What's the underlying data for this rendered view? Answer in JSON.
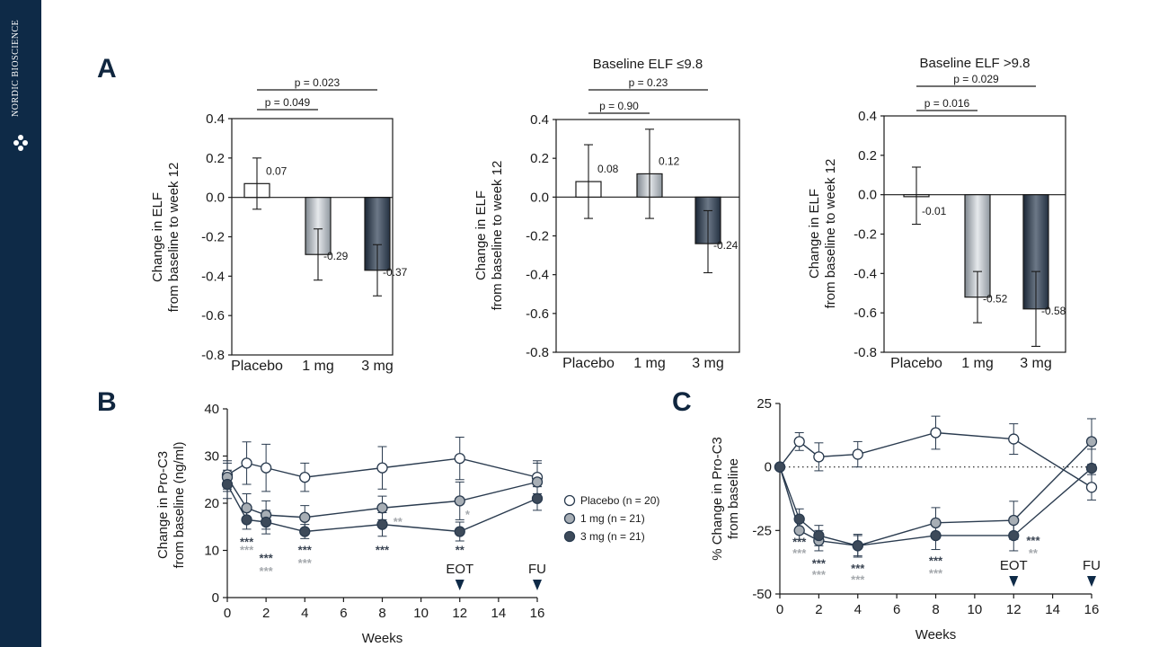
{
  "branding": {
    "name": "NORDIC BIOSCIENCE"
  },
  "colors": {
    "sidebar": "#0e2a47",
    "placebo": "#ffffff",
    "dose_1mg": "#a7aeb5",
    "dose_3mg": "#3d4a5a",
    "sig_1mg": "#a5a9ad",
    "sig_3mg": "#3a4452"
  },
  "gradients": {
    "g1": [
      "#7f878f",
      "#e6e9ec",
      "#8f979f"
    ],
    "g3": [
      "#1a2635",
      "#6c7887",
      "#243142"
    ]
  },
  "chart_data": [
    {
      "id": "A1",
      "panel_letter": "A",
      "type": "bar",
      "title": "",
      "ylabel": [
        "Change in ELF",
        "from baseline to week 12"
      ],
      "ylim": [
        -0.8,
        0.4
      ],
      "yticks": [
        "0.4",
        "0.2",
        "0.0",
        "-0.2",
        "-0.4",
        "-0.6",
        "-0.8"
      ],
      "categories": [
        "Placebo",
        "1 mg",
        "3 mg"
      ],
      "values": [
        0.07,
        -0.29,
        -0.37
      ],
      "value_labels": [
        "0.07",
        "-0.29",
        "-0.37"
      ],
      "err_low": [
        -0.06,
        -0.42,
        -0.5
      ],
      "err_high": [
        0.2,
        -0.16,
        -0.24
      ],
      "pvalues": [
        {
          "label": "p = 0.049",
          "from": 0,
          "to": 1
        },
        {
          "label": "p = 0.023",
          "from": 0,
          "to": 2
        }
      ]
    },
    {
      "id": "A2",
      "type": "bar",
      "title": "Baseline ELF ≤9.8",
      "ylabel": [
        "Change in ELF",
        "from baseline to week 12"
      ],
      "ylim": [
        -0.8,
        0.4
      ],
      "yticks": [
        "0.4",
        "0.2",
        "0.0",
        "-0.2",
        "-0.4",
        "-0.6",
        "-0.8"
      ],
      "categories": [
        "Placebo",
        "1 mg",
        "3 mg"
      ],
      "values": [
        0.08,
        0.12,
        -0.24
      ],
      "value_labels": [
        "0.08",
        "0.12",
        "-0.24"
      ],
      "err_low": [
        -0.11,
        -0.11,
        -0.39
      ],
      "err_high": [
        0.27,
        0.35,
        -0.07
      ],
      "pvalues": [
        {
          "label": "p = 0.90",
          "from": 0,
          "to": 1
        },
        {
          "label": "p = 0.23",
          "from": 0,
          "to": 2
        }
      ]
    },
    {
      "id": "A3",
      "type": "bar",
      "title": "Baseline ELF >9.8",
      "ylabel": [
        "Change in ELF",
        "from baseline to week 12"
      ],
      "ylim": [
        -0.8,
        0.4
      ],
      "yticks": [
        "0.4",
        "0.2",
        "0.0",
        "-0.2",
        "-0.4",
        "-0.6",
        "-0.8"
      ],
      "categories": [
        "Placebo",
        "1 mg",
        "3 mg"
      ],
      "values": [
        -0.01,
        -0.52,
        -0.58
      ],
      "value_labels": [
        "-0.01",
        "-0.52",
        "-0.58"
      ],
      "err_low": [
        -0.15,
        -0.65,
        -0.77
      ],
      "err_high": [
        0.14,
        -0.39,
        -0.39
      ],
      "pvalues": [
        {
          "label": "p = 0.016",
          "from": 0,
          "to": 1
        },
        {
          "label": "p = 0.029",
          "from": 0,
          "to": 2
        }
      ]
    },
    {
      "id": "B",
      "panel_letter": "B",
      "type": "line",
      "title": "",
      "xlabel": "Weeks",
      "ylabel": [
        "Change in Pro-C3",
        "from baseline (ng/ml)"
      ],
      "xlim": [
        0,
        16
      ],
      "ylim": [
        0,
        40
      ],
      "xticks": [
        0,
        2,
        4,
        6,
        8,
        10,
        12,
        14,
        16
      ],
      "yticks": [
        0,
        10,
        20,
        30,
        40
      ],
      "x": [
        0,
        1,
        2,
        4,
        8,
        12,
        16
      ],
      "series": [
        {
          "name": "Placebo (n = 20)",
          "style": "placebo",
          "y": [
            26,
            28.5,
            27.5,
            25.5,
            27.5,
            29.5,
            25.5
          ],
          "err": [
            3,
            4.5,
            5,
            3,
            4.5,
            4.5,
            3.5
          ]
        },
        {
          "name": "1 mg (n = 21)",
          "style": "dose_1mg",
          "y": [
            25.5,
            19,
            17.5,
            17,
            19,
            20.5,
            24.5
          ],
          "err": [
            3,
            3,
            3,
            2.5,
            2.5,
            4,
            4
          ]
        },
        {
          "name": "3 mg (n = 21)",
          "style": "dose_3mg",
          "y": [
            24,
            16.5,
            16,
            14,
            15.5,
            14,
            21
          ],
          "err": [
            3,
            2,
            2.5,
            1.5,
            2.5,
            2,
            2.5
          ]
        }
      ],
      "legend_position": "right",
      "markers": [
        {
          "label": "EOT",
          "x": 12
        },
        {
          "label": "FU",
          "x": 16
        }
      ],
      "significance": [
        {
          "x": 1,
          "y": 11,
          "text": "***",
          "style": "sig_3mg"
        },
        {
          "x": 1,
          "y": 9.2,
          "text": "***",
          "style": "sig_1mg"
        },
        {
          "x": 2,
          "y": 7.5,
          "text": "***",
          "style": "sig_3mg"
        },
        {
          "x": 2,
          "y": 4.8,
          "text": "***",
          "style": "sig_1mg"
        },
        {
          "x": 4,
          "y": 9.2,
          "text": "***",
          "style": "sig_3mg"
        },
        {
          "x": 4,
          "y": 6.5,
          "text": "***",
          "style": "sig_1mg"
        },
        {
          "x": 8,
          "y": 9.2,
          "text": "***",
          "style": "sig_3mg"
        },
        {
          "x": 8.8,
          "y": 15.2,
          "text": "**",
          "style": "sig_1mg"
        },
        {
          "x": 12,
          "y": 9.2,
          "text": "**",
          "style": "sig_3mg"
        },
        {
          "x": 12.4,
          "y": 16.8,
          "text": "*",
          "style": "sig_1mg"
        }
      ]
    },
    {
      "id": "C",
      "panel_letter": "C",
      "type": "line",
      "title": "",
      "xlabel": "Weeks",
      "ylabel": [
        "% Change in Pro-C3",
        "from baseline"
      ],
      "xlim": [
        0,
        16
      ],
      "ylim": [
        -50,
        25
      ],
      "xticks": [
        0,
        2,
        4,
        6,
        8,
        10,
        12,
        14,
        16
      ],
      "yticks": [
        25,
        0,
        -25,
        -50
      ],
      "x": [
        0,
        1,
        2,
        4,
        8,
        12,
        16
      ],
      "series": [
        {
          "name": "Placebo",
          "style": "placebo",
          "y": [
            0,
            10,
            4,
            5,
            13.5,
            11,
            -8
          ],
          "err": [
            0,
            3.5,
            5.5,
            5,
            6.5,
            6,
            5
          ]
        },
        {
          "name": "1 mg",
          "style": "dose_1mg",
          "y": [
            0,
            -25,
            -29,
            -31,
            -22,
            -21,
            10
          ],
          "err": [
            0,
            3.5,
            4,
            4,
            6,
            7.5,
            9
          ]
        },
        {
          "name": "3 mg",
          "style": "dose_3mg",
          "y": [
            0,
            -20.5,
            -27,
            -31,
            -27,
            -27,
            -0.5
          ],
          "err": [
            0,
            4,
            4,
            4.5,
            5.5,
            6,
            7.5
          ]
        }
      ],
      "zero_line": true,
      "markers": [
        {
          "label": "EOT",
          "x": 12
        },
        {
          "label": "FU",
          "x": 16
        }
      ],
      "significance": [
        {
          "x": 1,
          "y": -31,
          "text": "***",
          "style": "sig_3mg"
        },
        {
          "x": 1,
          "y": -35.5,
          "text": "***",
          "style": "sig_1mg"
        },
        {
          "x": 2,
          "y": -39.5,
          "text": "***",
          "style": "sig_3mg"
        },
        {
          "x": 2,
          "y": -44,
          "text": "***",
          "style": "sig_1mg"
        },
        {
          "x": 4,
          "y": -41.5,
          "text": "***",
          "style": "sig_3mg"
        },
        {
          "x": 4,
          "y": -46,
          "text": "***",
          "style": "sig_1mg"
        },
        {
          "x": 8,
          "y": -38.5,
          "text": "***",
          "style": "sig_3mg"
        },
        {
          "x": 8,
          "y": -43.5,
          "text": "***",
          "style": "sig_1mg"
        },
        {
          "x": 13,
          "y": -30.5,
          "text": "***",
          "style": "sig_3mg"
        },
        {
          "x": 13,
          "y": -35.5,
          "text": "**",
          "style": "sig_1mg"
        }
      ]
    }
  ]
}
